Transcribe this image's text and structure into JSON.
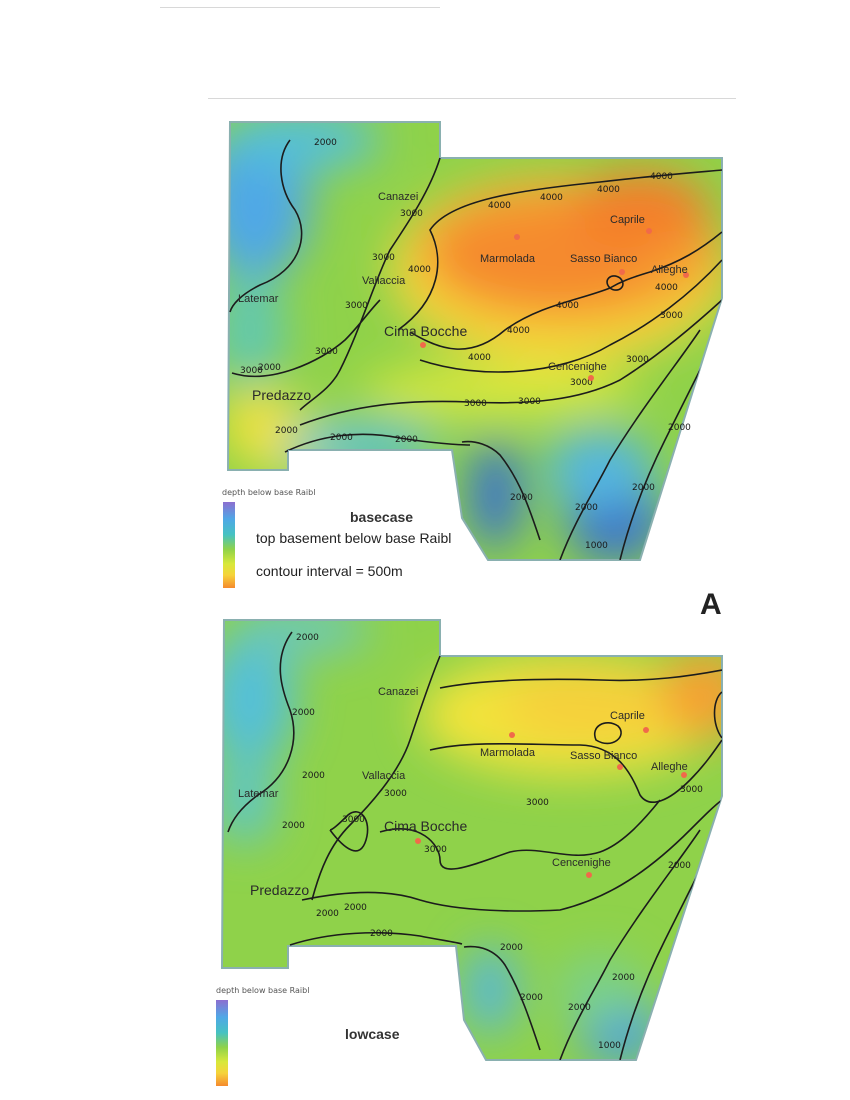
{
  "panel_letter": "A",
  "legend_title": "depth below base Raibl",
  "maps": [
    {
      "case": "basecase",
      "lines": [
        "top basement below base Raibl",
        "contour interval = 500m"
      ],
      "places": [
        "Canazei",
        "Latemar",
        "Vallaccia",
        "Predazzo",
        "Cima Bocche",
        "Marmolada",
        "Sasso Bianco",
        "Caprile",
        "Alleghe",
        "Cencenighe"
      ],
      "contours": [
        "2000",
        "2000",
        "2000",
        "2000",
        "2000",
        "2000",
        "2000",
        "2000",
        "2000",
        "3000",
        "3000",
        "3000",
        "3000",
        "3000",
        "3000",
        "3000",
        "3000",
        "3000",
        "3000",
        "4000",
        "4000",
        "4000",
        "4000",
        "4000",
        "4000",
        "4000",
        "4000",
        "4000",
        "1000"
      ]
    },
    {
      "case": "lowcase",
      "lines": [],
      "places": [
        "Canazei",
        "Latemar",
        "Vallaccia",
        "Predazzo",
        "Cima Bocche",
        "Marmolada",
        "Sasso Bianco",
        "Caprile",
        "Alleghe",
        "Cencenighe"
      ],
      "contours": [
        "2000",
        "2000",
        "2000",
        "2000",
        "2000",
        "2000",
        "2000",
        "2000",
        "2000",
        "2000",
        "2000",
        "2000",
        "3000",
        "3000",
        "3000",
        "3000",
        "3000",
        "1000"
      ]
    }
  ],
  "colors": {
    "deep_purple": "#8c6fd0",
    "blue": "#4fa8e6",
    "cyan": "#46c2c2",
    "green": "#8fd24a",
    "yellow": "#f6e43a",
    "orange": "#f5892e",
    "well_marker": "#f06a4a"
  }
}
